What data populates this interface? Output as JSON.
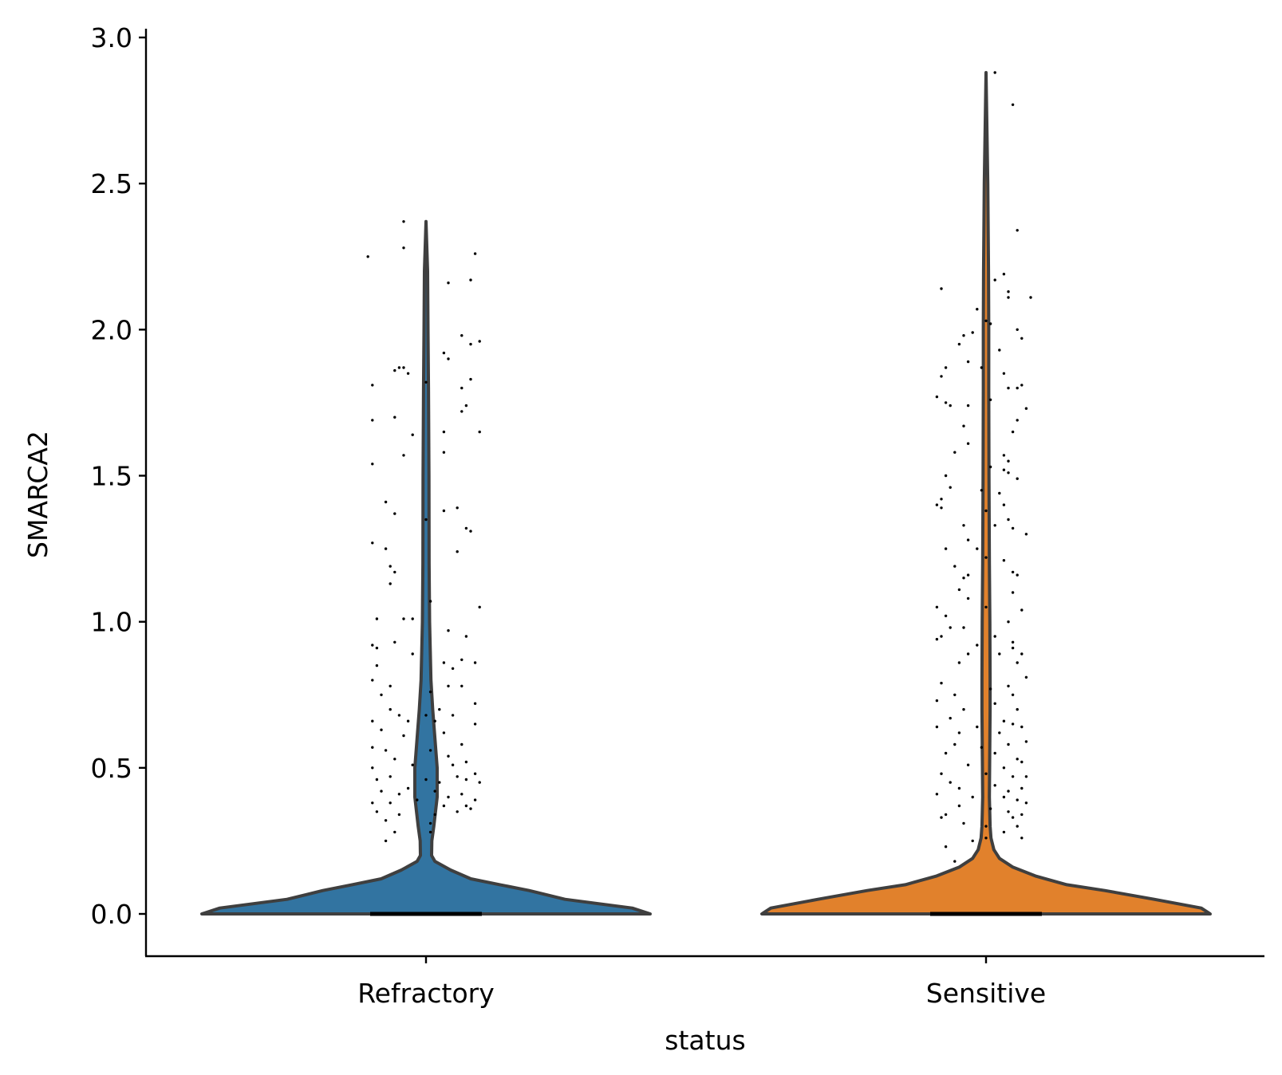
{
  "chart_data": {
    "type": "violin",
    "title": "",
    "xlabel": "status",
    "ylabel": "SMARCA2",
    "ylim": [
      -0.145,
      3.02
    ],
    "yticks": [
      "0.0",
      "0.5",
      "1.0",
      "1.5",
      "2.0",
      "2.5",
      "3.0"
    ],
    "grid": false,
    "legend": "none",
    "categories": [
      "Refractory",
      "Sensitive"
    ],
    "series": [
      {
        "category": "Refractory",
        "color": "#3274a1",
        "max": 2.37,
        "density_profile": [
          [
            0.0,
            1.0
          ],
          [
            0.02,
            0.92
          ],
          [
            0.05,
            0.62
          ],
          [
            0.08,
            0.46
          ],
          [
            0.1,
            0.33
          ],
          [
            0.12,
            0.2
          ],
          [
            0.15,
            0.11
          ],
          [
            0.18,
            0.04
          ],
          [
            0.2,
            0.025
          ],
          [
            0.25,
            0.026
          ],
          [
            0.3,
            0.035
          ],
          [
            0.4,
            0.05
          ],
          [
            0.5,
            0.05
          ],
          [
            0.6,
            0.04
          ],
          [
            0.7,
            0.03
          ],
          [
            0.8,
            0.022
          ],
          [
            1.0,
            0.016
          ],
          [
            1.2,
            0.014
          ],
          [
            1.5,
            0.013
          ],
          [
            1.8,
            0.011
          ],
          [
            2.0,
            0.009
          ],
          [
            2.2,
            0.007
          ],
          [
            2.37,
            0.0
          ]
        ],
        "points": [
          [
            -0.13,
            2.25
          ],
          [
            -0.05,
            2.37
          ],
          [
            -0.05,
            2.28
          ],
          [
            0.11,
            2.26
          ],
          [
            0.05,
            2.16
          ],
          [
            0.1,
            2.17
          ],
          [
            0.08,
            1.98
          ],
          [
            0.1,
            1.95
          ],
          [
            0.12,
            1.96
          ],
          [
            0.04,
            1.92
          ],
          [
            0.05,
            1.9
          ],
          [
            -0.12,
            1.81
          ],
          [
            -0.07,
            1.86
          ],
          [
            -0.06,
            1.87
          ],
          [
            -0.05,
            1.87
          ],
          [
            -0.04,
            1.85
          ],
          [
            0.0,
            1.82
          ],
          [
            0.1,
            1.83
          ],
          [
            0.08,
            1.8
          ],
          [
            0.09,
            1.74
          ],
          [
            0.08,
            1.72
          ],
          [
            -0.12,
            1.69
          ],
          [
            -0.07,
            1.7
          ],
          [
            0.12,
            1.65
          ],
          [
            -0.03,
            1.64
          ],
          [
            0.04,
            1.65
          ],
          [
            -0.05,
            1.57
          ],
          [
            0.04,
            1.58
          ],
          [
            -0.12,
            1.54
          ],
          [
            -0.09,
            1.41
          ],
          [
            0.07,
            1.39
          ],
          [
            -0.07,
            1.37
          ],
          [
            0.0,
            1.35
          ],
          [
            0.04,
            1.38
          ],
          [
            0.09,
            1.32
          ],
          [
            0.1,
            1.31
          ],
          [
            -0.12,
            1.27
          ],
          [
            -0.09,
            1.25
          ],
          [
            0.07,
            1.24
          ],
          [
            -0.08,
            1.19
          ],
          [
            -0.07,
            1.17
          ],
          [
            -0.08,
            1.13
          ],
          [
            0.01,
            1.07
          ],
          [
            0.12,
            1.05
          ],
          [
            -0.11,
            1.01
          ],
          [
            -0.05,
            1.01
          ],
          [
            -0.03,
            1.01
          ],
          [
            0.05,
            0.97
          ],
          [
            0.09,
            0.95
          ],
          [
            -0.12,
            0.92
          ],
          [
            -0.11,
            0.91
          ],
          [
            -0.07,
            0.93
          ],
          [
            -0.03,
            0.89
          ],
          [
            0.08,
            0.87
          ],
          [
            0.11,
            0.86
          ],
          [
            0.04,
            0.86
          ],
          [
            0.06,
            0.84
          ],
          [
            -0.11,
            0.85
          ],
          [
            -0.12,
            0.8
          ],
          [
            -0.08,
            0.78
          ],
          [
            0.05,
            0.78
          ],
          [
            0.08,
            0.78
          ],
          [
            -0.1,
            0.75
          ],
          [
            0.01,
            0.76
          ],
          [
            0.11,
            0.72
          ],
          [
            -0.08,
            0.7
          ],
          [
            0.03,
            0.7
          ],
          [
            0.0,
            0.68
          ],
          [
            0.06,
            0.68
          ],
          [
            -0.12,
            0.66
          ],
          [
            -0.06,
            0.68
          ],
          [
            -0.04,
            0.66
          ],
          [
            0.02,
            0.66
          ],
          [
            0.11,
            0.65
          ],
          [
            -0.1,
            0.63
          ],
          [
            -0.05,
            0.61
          ],
          [
            0.04,
            0.62
          ],
          [
            0.08,
            0.58
          ],
          [
            -0.12,
            0.57
          ],
          [
            -0.09,
            0.56
          ],
          [
            0.01,
            0.56
          ],
          [
            -0.07,
            0.53
          ],
          [
            0.05,
            0.54
          ],
          [
            0.09,
            0.52
          ],
          [
            -0.12,
            0.5
          ],
          [
            -0.03,
            0.51
          ],
          [
            0.06,
            0.51
          ],
          [
            0.11,
            0.48
          ],
          [
            -0.11,
            0.46
          ],
          [
            -0.08,
            0.47
          ],
          [
            0.0,
            0.46
          ],
          [
            0.03,
            0.45
          ],
          [
            0.07,
            0.47
          ],
          [
            0.09,
            0.46
          ],
          [
            0.12,
            0.45
          ],
          [
            -0.1,
            0.42
          ],
          [
            -0.06,
            0.41
          ],
          [
            -0.04,
            0.43
          ],
          [
            0.02,
            0.42
          ],
          [
            0.05,
            0.4
          ],
          [
            0.08,
            0.41
          ],
          [
            0.11,
            0.39
          ],
          [
            -0.12,
            0.38
          ],
          [
            -0.08,
            0.38
          ],
          [
            -0.02,
            0.39
          ],
          [
            0.04,
            0.37
          ],
          [
            0.09,
            0.37
          ],
          [
            0.1,
            0.36
          ],
          [
            -0.11,
            0.35
          ],
          [
            -0.06,
            0.34
          ],
          [
            0.02,
            0.34
          ],
          [
            0.07,
            0.35
          ],
          [
            -0.09,
            0.32
          ],
          [
            0.01,
            0.31
          ],
          [
            -0.07,
            0.28
          ],
          [
            0.01,
            0.28
          ],
          [
            -0.09,
            0.25
          ]
        ]
      },
      {
        "category": "Sensitive",
        "color": "#e1812c",
        "max": 2.88,
        "density_profile": [
          [
            0.0,
            1.0
          ],
          [
            0.02,
            0.96
          ],
          [
            0.05,
            0.75
          ],
          [
            0.08,
            0.53
          ],
          [
            0.1,
            0.36
          ],
          [
            0.13,
            0.22
          ],
          [
            0.16,
            0.12
          ],
          [
            0.19,
            0.06
          ],
          [
            0.22,
            0.035
          ],
          [
            0.26,
            0.022
          ],
          [
            0.3,
            0.018
          ],
          [
            0.4,
            0.015
          ],
          [
            0.5,
            0.016
          ],
          [
            0.6,
            0.017
          ],
          [
            0.7,
            0.018
          ],
          [
            0.8,
            0.018
          ],
          [
            1.0,
            0.017
          ],
          [
            1.2,
            0.015
          ],
          [
            1.5,
            0.013
          ],
          [
            1.8,
            0.012
          ],
          [
            2.0,
            0.012
          ],
          [
            2.2,
            0.011
          ],
          [
            2.5,
            0.008
          ],
          [
            2.88,
            0.0
          ]
        ],
        "points": [
          [
            0.02,
            2.88
          ],
          [
            0.06,
            2.77
          ],
          [
            0.07,
            2.34
          ],
          [
            0.04,
            2.19
          ],
          [
            -0.1,
            2.14
          ],
          [
            0.02,
            2.17
          ],
          [
            0.05,
            2.13
          ],
          [
            0.05,
            2.11
          ],
          [
            0.1,
            2.11
          ],
          [
            -0.02,
            2.07
          ],
          [
            0.0,
            2.03
          ],
          [
            0.01,
            2.02
          ],
          [
            -0.03,
            1.99
          ],
          [
            -0.05,
            1.98
          ],
          [
            0.07,
            2.0
          ],
          [
            0.08,
            1.97
          ],
          [
            -0.06,
            1.95
          ],
          [
            0.03,
            1.93
          ],
          [
            -0.04,
            1.89
          ],
          [
            -0.09,
            1.87
          ],
          [
            -0.01,
            1.87
          ],
          [
            0.04,
            1.85
          ],
          [
            -0.1,
            1.84
          ],
          [
            0.08,
            1.81
          ],
          [
            0.05,
            1.8
          ],
          [
            0.07,
            1.8
          ],
          [
            -0.11,
            1.77
          ],
          [
            -0.09,
            1.75
          ],
          [
            -0.08,
            1.74
          ],
          [
            -0.04,
            1.74
          ],
          [
            0.01,
            1.76
          ],
          [
            0.09,
            1.73
          ],
          [
            0.07,
            1.69
          ],
          [
            -0.05,
            1.67
          ],
          [
            0.06,
            1.65
          ],
          [
            -0.04,
            1.61
          ],
          [
            -0.07,
            1.58
          ],
          [
            0.04,
            1.57
          ],
          [
            0.05,
            1.55
          ],
          [
            0.01,
            1.53
          ],
          [
            0.04,
            1.52
          ],
          [
            -0.09,
            1.5
          ],
          [
            0.05,
            1.51
          ],
          [
            0.07,
            1.49
          ],
          [
            -0.08,
            1.46
          ],
          [
            -0.01,
            1.45
          ],
          [
            0.03,
            1.44
          ],
          [
            -0.1,
            1.42
          ],
          [
            -0.11,
            1.4
          ],
          [
            -0.1,
            1.39
          ],
          [
            0.04,
            1.4
          ],
          [
            0.0,
            1.38
          ],
          [
            0.05,
            1.35
          ],
          [
            0.02,
            1.33
          ],
          [
            -0.05,
            1.33
          ],
          [
            0.06,
            1.32
          ],
          [
            0.09,
            1.3
          ],
          [
            -0.04,
            1.28
          ],
          [
            -0.09,
            1.25
          ],
          [
            -0.02,
            1.25
          ],
          [
            0.0,
            1.22
          ],
          [
            0.04,
            1.21
          ],
          [
            -0.07,
            1.19
          ],
          [
            0.06,
            1.17
          ],
          [
            -0.04,
            1.16
          ],
          [
            -0.05,
            1.15
          ],
          [
            0.07,
            1.16
          ],
          [
            -0.06,
            1.11
          ],
          [
            0.06,
            1.1
          ],
          [
            -0.04,
            1.08
          ],
          [
            -0.11,
            1.05
          ],
          [
            0.0,
            1.05
          ],
          [
            0.08,
            1.04
          ],
          [
            -0.09,
            1.02
          ],
          [
            0.05,
            1.0
          ],
          [
            -0.08,
            0.98
          ],
          [
            -0.05,
            0.98
          ],
          [
            -0.1,
            0.95
          ],
          [
            -0.11,
            0.94
          ],
          [
            0.02,
            0.95
          ],
          [
            0.06,
            0.93
          ],
          [
            -0.02,
            0.92
          ],
          [
            0.06,
            0.91
          ],
          [
            0.08,
            0.89
          ],
          [
            -0.04,
            0.89
          ],
          [
            0.03,
            0.89
          ],
          [
            -0.06,
            0.86
          ],
          [
            0.07,
            0.86
          ],
          [
            -0.1,
            0.79
          ],
          [
            0.01,
            0.77
          ],
          [
            0.05,
            0.78
          ],
          [
            0.09,
            0.81
          ],
          [
            -0.07,
            0.75
          ],
          [
            0.06,
            0.75
          ],
          [
            -0.11,
            0.73
          ],
          [
            0.02,
            0.72
          ],
          [
            -0.05,
            0.7
          ],
          [
            0.07,
            0.7
          ],
          [
            -0.08,
            0.67
          ],
          [
            0.04,
            0.66
          ],
          [
            -0.11,
            0.64
          ],
          [
            -0.02,
            0.64
          ],
          [
            0.06,
            0.65
          ],
          [
            0.08,
            0.64
          ],
          [
            -0.06,
            0.62
          ],
          [
            0.03,
            0.62
          ],
          [
            0.09,
            0.59
          ],
          [
            -0.07,
            0.58
          ],
          [
            -0.01,
            0.57
          ],
          [
            0.05,
            0.58
          ],
          [
            -0.09,
            0.55
          ],
          [
            0.02,
            0.55
          ],
          [
            0.07,
            0.53
          ],
          [
            -0.04,
            0.51
          ],
          [
            0.04,
            0.5
          ],
          [
            0.08,
            0.52
          ],
          [
            -0.1,
            0.48
          ],
          [
            0.0,
            0.48
          ],
          [
            0.06,
            0.47
          ],
          [
            0.09,
            0.47
          ],
          [
            -0.08,
            0.45
          ],
          [
            -0.06,
            0.43
          ],
          [
            0.02,
            0.44
          ],
          [
            0.05,
            0.42
          ],
          [
            0.08,
            0.43
          ],
          [
            -0.11,
            0.41
          ],
          [
            -0.03,
            0.4
          ],
          [
            0.04,
            0.4
          ],
          [
            0.07,
            0.39
          ],
          [
            0.09,
            0.38
          ],
          [
            -0.06,
            0.37
          ],
          [
            0.01,
            0.36
          ],
          [
            0.05,
            0.35
          ],
          [
            -0.09,
            0.34
          ],
          [
            -0.1,
            0.33
          ],
          [
            0.06,
            0.33
          ],
          [
            0.08,
            0.34
          ],
          [
            -0.05,
            0.31
          ],
          [
            0.0,
            0.3
          ],
          [
            0.07,
            0.3
          ],
          [
            0.04,
            0.28
          ],
          [
            0.08,
            0.26
          ],
          [
            -0.03,
            0.25
          ],
          [
            0.0,
            0.26
          ],
          [
            -0.09,
            0.23
          ],
          [
            -0.07,
            0.18
          ]
        ]
      }
    ]
  }
}
